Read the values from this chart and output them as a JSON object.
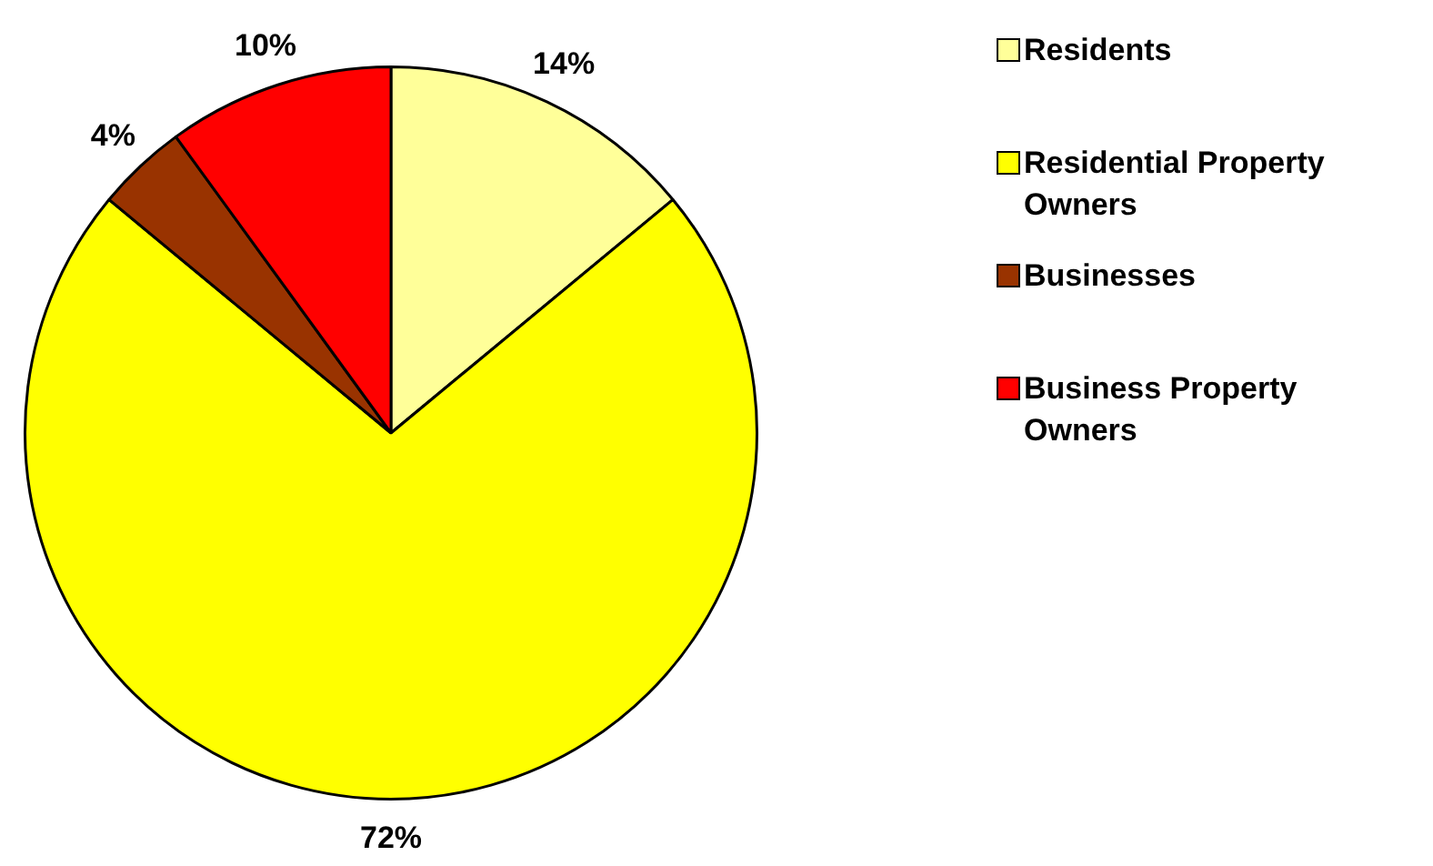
{
  "chart_data": {
    "type": "pie",
    "categories": [
      "Residents",
      "Residential Property Owners",
      "Businesses",
      "Business Property Owners"
    ],
    "values": [
      14,
      72,
      4,
      10
    ],
    "colors": [
      "#ffff99",
      "#ffff00",
      "#993300",
      "#ff0000"
    ],
    "value_labels": [
      "14%",
      "72%",
      "4%",
      "10%"
    ],
    "legend": "right"
  }
}
